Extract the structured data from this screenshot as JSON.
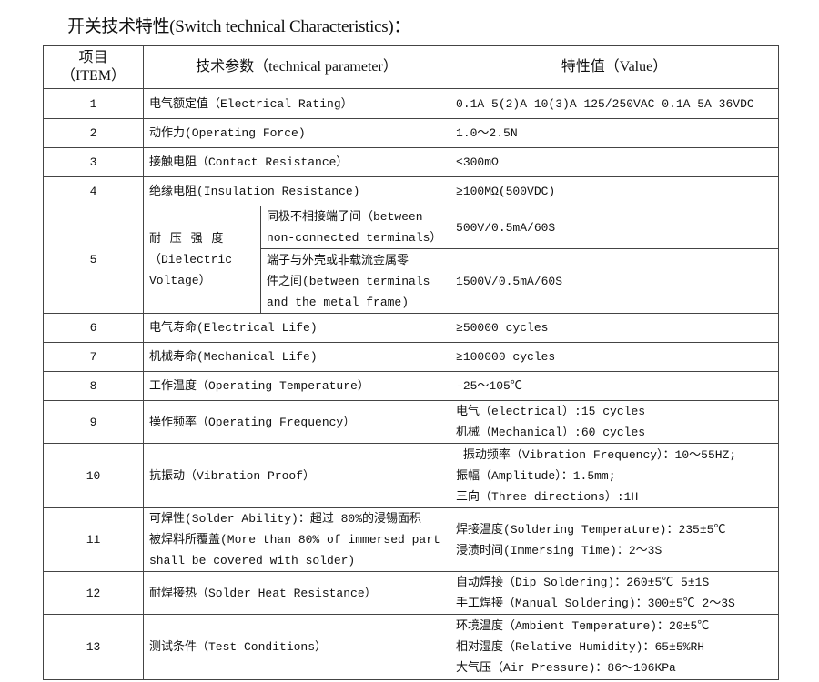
{
  "title": "开关技术特性(Switch technical Characteristics)：",
  "header": {
    "item": [
      "项目",
      "（ITEM）"
    ],
    "parameter": "技术参数（technical parameter）",
    "value": "特性值（Value）"
  },
  "rows": [
    {
      "no": "1",
      "param": "电气额定值（Electrical Rating）",
      "value": [
        "0.1A 5(2)A 10(3)A 125/250VAC 0.1A 5A 36VDC"
      ]
    },
    {
      "no": "2",
      "param": "动作力(Operating Force)",
      "value": [
        "1.0～2.5N"
      ]
    },
    {
      "no": "3",
      "param": "接触电阻（Contact  Resistance）",
      "value": [
        "≤300mΩ"
      ]
    },
    {
      "no": "4",
      "param": "绝缘电阻(Insulation Resistance)",
      "value": [
        "≥100MΩ(500VDC)"
      ]
    },
    {
      "no": "5",
      "param": [
        "耐 压 强 度",
        "（Dielectric",
        "Voltage）"
      ],
      "sub": [
        {
          "param": [
            "同极不相接端子间（between",
            "non-connected terminals）"
          ],
          "value": "500V/0.5mA/60S"
        },
        {
          "param": [
            "端子与外壳或非载流金属零",
            "件之间(between terminals",
            "and the metal frame)"
          ],
          "value": "1500V/0.5mA/60S"
        }
      ]
    },
    {
      "no": "6",
      "param": "电气寿命(Electrical Life)",
      "value": [
        "≥50000 cycles"
      ]
    },
    {
      "no": "7",
      "param": "机械寿命(Mechanical Life)",
      "value": [
        "≥100000 cycles"
      ]
    },
    {
      "no": "8",
      "param": "工作温度（Operating Temperature）",
      "value": [
        "-25～105℃"
      ]
    },
    {
      "no": "9",
      "param": "操作频率（Operating Frequency）",
      "value": [
        "电气（electrical）:15 cycles",
        "机械（Mechanical）:60 cycles"
      ]
    },
    {
      "no": "10",
      "param": "抗振动（Vibration Proof）",
      "value": [
        " 振动频率（Vibration Frequency）：10～55HZ;",
        "振幅（Amplitude）：1.5mm;",
        "三向（Three directions）:1H"
      ]
    },
    {
      "no": "11",
      "param": [
        "可焊性(Solder Ability)：超过 80%的浸锡面积",
        "被焊料所覆盖(More than 80% of immersed part",
        "shall be covered with solder)"
      ],
      "value": [
        "焊接温度(Soldering Temperature)：235±5℃",
        "浸渍时间(Immersing Time)：2～3S"
      ]
    },
    {
      "no": "12",
      "param": "耐焊接热（Solder Heat Resistance）",
      "value": [
        "自动焊接（Dip Soldering)：260±5℃ 5±1S",
        "手工焊接（Manual Soldering)：300±5℃ 2～3S"
      ]
    },
    {
      "no": "13",
      "param": "测试条件（Test Conditions）",
      "value": [
        "环境温度（Ambient Temperature)：20±5℃",
        "相对湿度（Relative Humidity)：65±5%RH",
        "大气压（Air Pressure)：86～106KPa"
      ]
    }
  ]
}
